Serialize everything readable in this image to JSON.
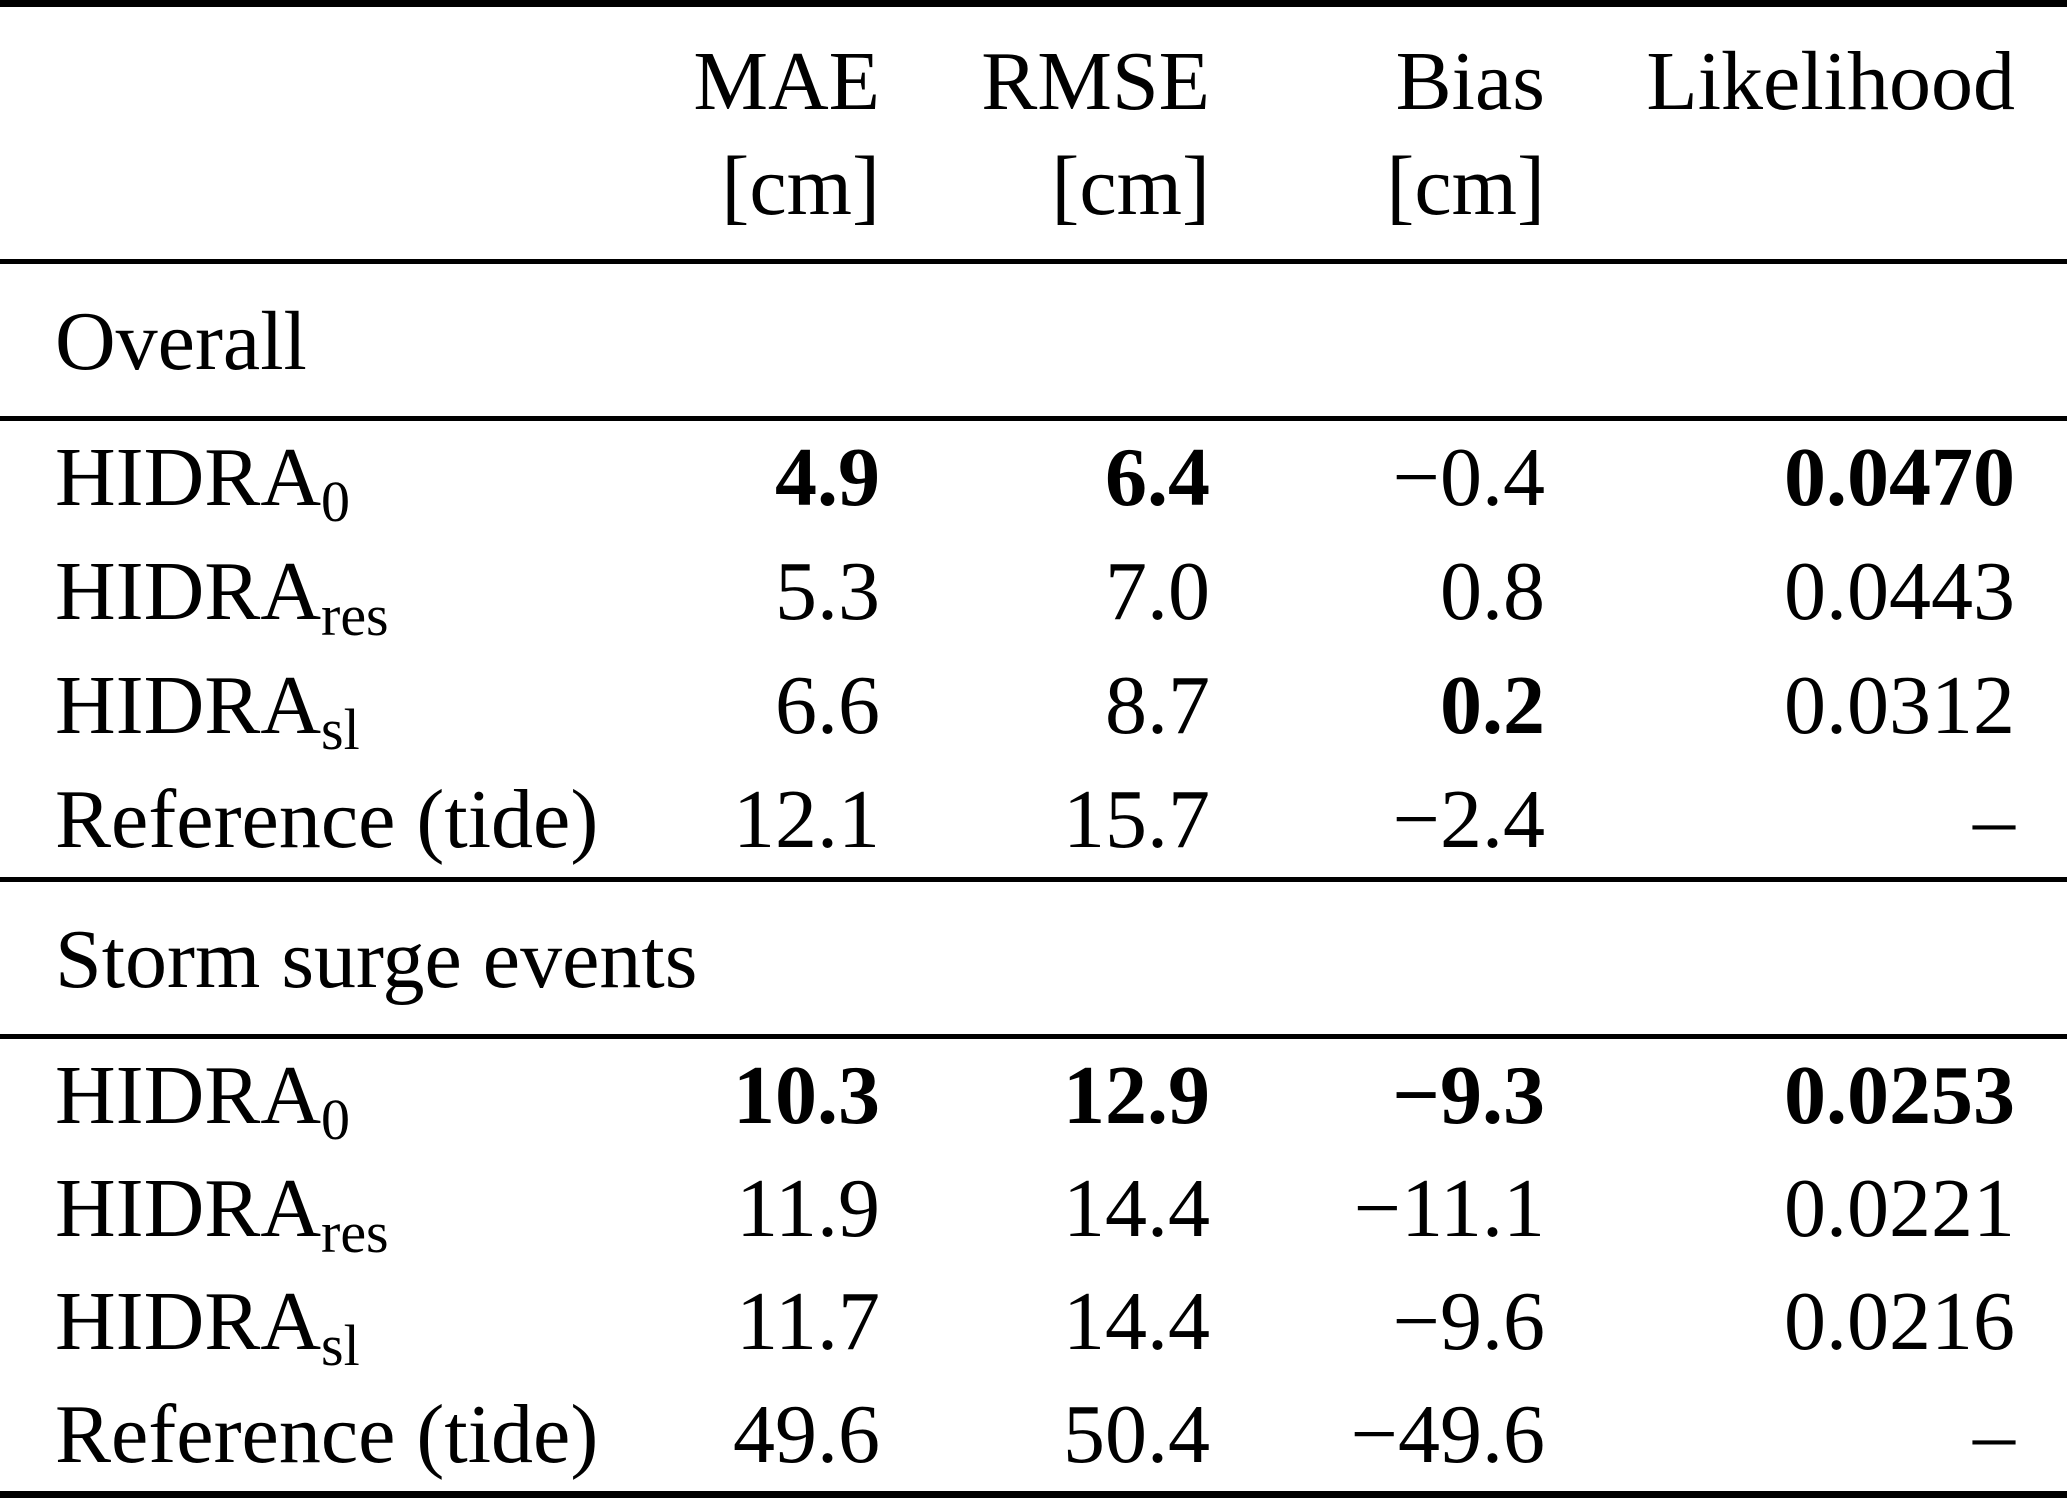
{
  "table": {
    "columns": {
      "mae": {
        "label": "MAE",
        "unit": "[cm]"
      },
      "rmse": {
        "label": "RMSE",
        "unit": "[cm]"
      },
      "bias": {
        "label": "Bias",
        "unit": "[cm]"
      },
      "likelihood": {
        "label": "Likelihood",
        "unit": ""
      }
    },
    "sections": [
      {
        "title": "Overall",
        "rows": [
          {
            "label": "HIDRA",
            "label_sub": "0",
            "values": [
              "4.9",
              "6.4",
              "−0.4",
              "0.0470"
            ],
            "bold": [
              true,
              true,
              false,
              true
            ]
          },
          {
            "label": "HIDRA",
            "label_sub": "res",
            "values": [
              "5.3",
              "7.0",
              "0.8",
              "0.0443"
            ],
            "bold": [
              false,
              false,
              false,
              false
            ]
          },
          {
            "label": "HIDRA",
            "label_sub": "sl",
            "values": [
              "6.6",
              "8.7",
              "0.2",
              "0.0312"
            ],
            "bold": [
              false,
              false,
              true,
              false
            ]
          },
          {
            "label": "Reference (tide)",
            "label_sub": "",
            "values": [
              "12.1",
              "15.7",
              "−2.4",
              "–"
            ],
            "bold": [
              false,
              false,
              false,
              false
            ]
          }
        ]
      },
      {
        "title": "Storm surge events",
        "rows": [
          {
            "label": "HIDRA",
            "label_sub": "0",
            "values": [
              "10.3",
              "12.9",
              "−9.3",
              "0.0253"
            ],
            "bold": [
              true,
              true,
              true,
              true
            ]
          },
          {
            "label": "HIDRA",
            "label_sub": "res",
            "values": [
              "11.9",
              "14.4",
              "−11.1",
              "0.0221"
            ],
            "bold": [
              false,
              false,
              false,
              false
            ]
          },
          {
            "label": "HIDRA",
            "label_sub": "sl",
            "values": [
              "11.7",
              "14.4",
              "−9.6",
              "0.0216"
            ],
            "bold": [
              false,
              false,
              false,
              false
            ]
          },
          {
            "label": "Reference (tide)",
            "label_sub": "",
            "values": [
              "49.6",
              "50.4",
              "−49.6",
              "–"
            ],
            "bold": [
              false,
              false,
              false,
              false
            ]
          }
        ]
      }
    ]
  }
}
